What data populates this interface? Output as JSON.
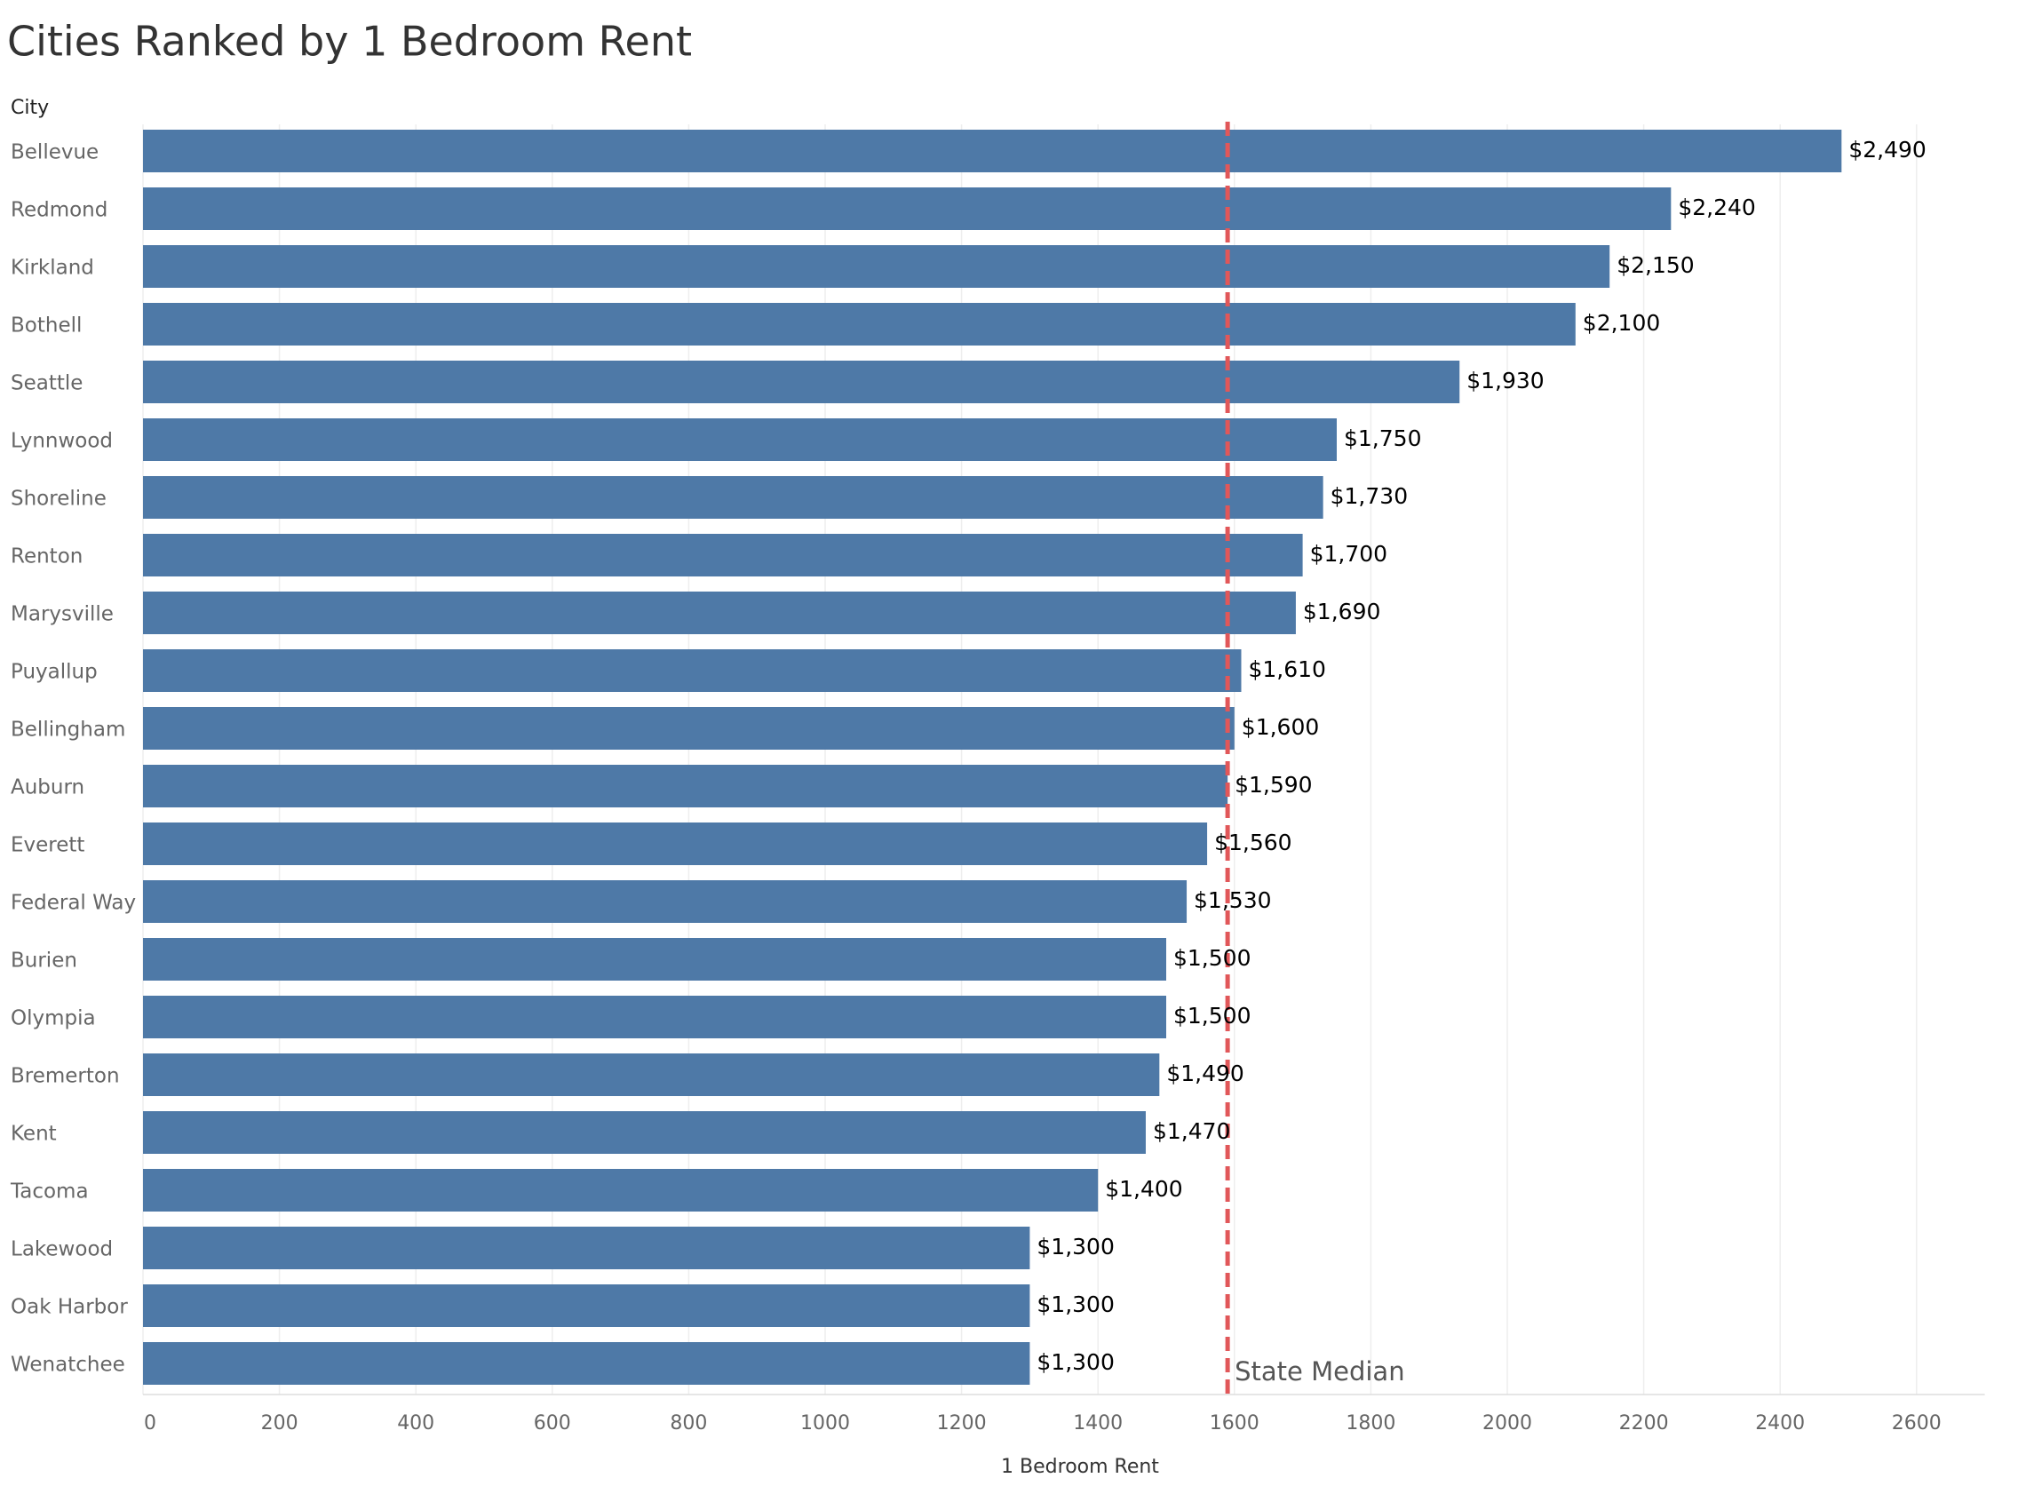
{
  "chart_data": {
    "type": "hbar",
    "title": "Cities Ranked by 1 Bedroom Rent",
    "y_axis_label": "City",
    "x_axis_label": "1 Bedroom Rent",
    "categories": [
      "Bellevue",
      "Redmond",
      "Kirkland",
      "Bothell",
      "Seattle",
      "Lynnwood",
      "Shoreline",
      "Renton",
      "Marysville",
      "Puyallup",
      "Bellingham",
      "Auburn",
      "Everett",
      "Federal Way",
      "Burien",
      "Olympia",
      "Bremerton",
      "Kent",
      "Tacoma",
      "Lakewood",
      "Oak Harbor",
      "Wenatchee"
    ],
    "values": [
      2490,
      2240,
      2150,
      2100,
      1930,
      1750,
      1730,
      1700,
      1690,
      1610,
      1600,
      1590,
      1560,
      1530,
      1500,
      1500,
      1490,
      1470,
      1400,
      1300,
      1300,
      1300
    ],
    "value_labels": [
      "$2,490",
      "$2,240",
      "$2,150",
      "$2,100",
      "$1,930",
      "$1,750",
      "$1,730",
      "$1,700",
      "$1,690",
      "$1,610",
      "$1,600",
      "$1,590",
      "$1,560",
      "$1,530",
      "$1,500",
      "$1,500",
      "$1,490",
      "$1,470",
      "$1,400",
      "$1,300",
      "$1,300",
      "$1,300"
    ],
    "color": "#4e79a7",
    "xlim": [
      0,
      2700
    ],
    "xticks": [
      0,
      200,
      400,
      600,
      800,
      1000,
      1200,
      1400,
      1600,
      1800,
      2000,
      2200,
      2400,
      2600
    ],
    "grid": true,
    "reference_line": {
      "label": "State Median",
      "value": 1590,
      "color": "#e15759"
    }
  }
}
